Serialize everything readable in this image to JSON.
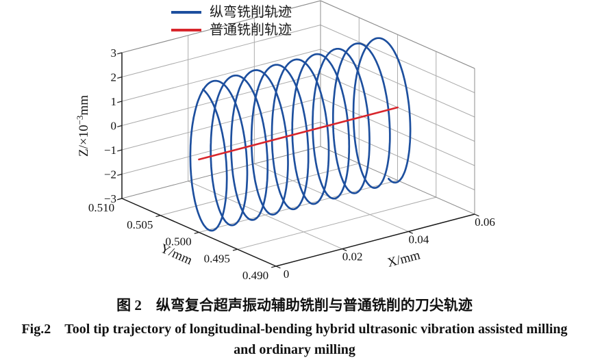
{
  "legend": {
    "items": [
      {
        "label": "纵弯铣削轨迹",
        "color": "#1d4f9e"
      },
      {
        "label": "普通铣削轨迹",
        "color": "#d8262c"
      }
    ]
  },
  "chart_data": {
    "type": "line",
    "subtype": "3d-trajectory-plot",
    "title": "",
    "grid": true,
    "legend_position": "top",
    "colors": {
      "grid": "#ababab",
      "back_edge": "#8c8c8c",
      "front_edge": "#1a1a1a",
      "tick_text": "#111111"
    },
    "x": {
      "label": "X/mm",
      "range": [
        0,
        0.06
      ],
      "ticks": [
        "0",
        "0.02",
        "0.04",
        "0.06"
      ]
    },
    "y": {
      "label": "Y/mm",
      "range": [
        0.49,
        0.51
      ],
      "ticks": [
        "0.490",
        "0.495",
        "0.500",
        "0.505",
        "0.510"
      ]
    },
    "z": {
      "label_prefix": "Z/×10",
      "label_sup": "−3",
      "label_suffix": "mm",
      "range": [
        -3,
        3
      ],
      "ticks": [
        "−3",
        "−2",
        "−1",
        "0",
        "1",
        "2",
        "3"
      ]
    },
    "series": [
      {
        "id": "ultrasonic-milling-trajectory",
        "label": "纵弯铣削轨迹",
        "type": "helix3d",
        "color": "#1d4f9e",
        "line_width": 2.7,
        "x_start": 0,
        "x_end": 0.0585,
        "turns": 9.5,
        "phase_deg": 100,
        "y_center": 0.5,
        "y_amplitude": 0.003,
        "z_center": 0,
        "z_amplitude": 3
      },
      {
        "id": "ordinary-milling-trajectory",
        "label": "普通铣削轨迹",
        "type": "line3d",
        "color": "#d8262c",
        "line_width": 2.7,
        "points": [
          [
            0,
            0.5,
            0
          ],
          [
            0.06,
            0.5,
            0
          ]
        ]
      }
    ]
  },
  "caption": {
    "zh": "图 2　纵弯复合超声振动辅助铣削与普通铣削的刀尖轨迹",
    "en_line1": "Fig.2　Tool tip trajectory of longitudinal-bending hybrid ultrasonic vibration assisted milling",
    "en_line2": "and ordinary milling"
  }
}
